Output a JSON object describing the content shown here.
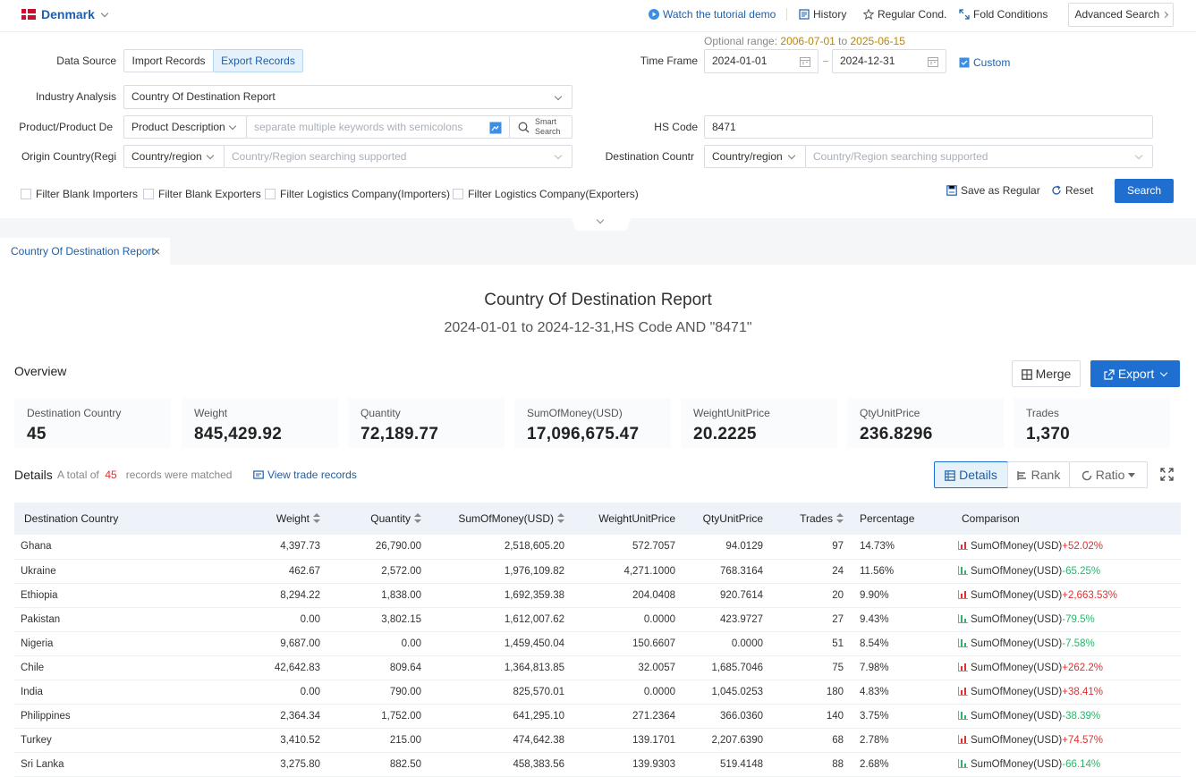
{
  "top": {
    "country": "Denmark",
    "tutorial": "Watch the tutorial demo",
    "history": "History",
    "regular": "Regular Cond.",
    "fold": "Fold Conditions",
    "advanced": "Advanced Search"
  },
  "filters": {
    "optional_range_label": "Optional range",
    "range_start": "2006-07-01",
    "range_to": "to",
    "range_end": "2025-06-15",
    "data_source_label": "Data Source",
    "import_label": "Import Records",
    "export_label": "Export Records",
    "time_frame_label": "Time Frame",
    "date_from": "2024-01-01",
    "date_to": "2024-12-31",
    "custom_label": "Custom",
    "industry_label": "Industry Analysis",
    "industry_value": "Country Of Destination Report",
    "product_label": "Product/Product De",
    "product_type": "Product Description",
    "keywords_placeholder": "separate multiple keywords with semicolons",
    "smart_search_1": "Smart",
    "smart_search_2": "Search",
    "hs_label": "HS Code",
    "hs_value": "8471",
    "origin_label": "Origin Country(Regi",
    "origin_type": "Country/region",
    "origin_placeholder": "Country/Region searching supported",
    "dest_label": "Destination Countr",
    "dest_type": "Country/region",
    "dest_placeholder": "Country/Region searching supported",
    "cb1": "Filter Blank Importers",
    "cb2": "Filter Blank Exporters",
    "cb3": "Filter Logistics Company(Importers)",
    "cb4": "Filter Logistics Company(Exporters)",
    "save_regular": "Save as Regular",
    "reset": "Reset",
    "search": "Search"
  },
  "tab": {
    "label": "Country Of Destination Report"
  },
  "report": {
    "title": "Country Of Destination Report",
    "subtitle": "2024-01-01 to 2024-12-31,HS Code AND \"8471\""
  },
  "overview": {
    "title": "Overview",
    "merge": "Merge",
    "export": "Export",
    "kpis": [
      {
        "label": "Destination Country",
        "value": "45"
      },
      {
        "label": "Weight",
        "value": "845,429.92"
      },
      {
        "label": "Quantity",
        "value": "72,189.77"
      },
      {
        "label": "SumOfMoney(USD)",
        "value": "17,096,675.47"
      },
      {
        "label": "WeightUnitPrice",
        "value": "20.2225"
      },
      {
        "label": "QtyUnitPrice",
        "value": "236.8296"
      },
      {
        "label": "Trades",
        "value": "1,370"
      }
    ]
  },
  "details": {
    "title": "Details",
    "total_prefix": "A total of",
    "total_count": "45",
    "total_suffix": "records were matched",
    "view_trade": "View trade records",
    "btn_details": "Details",
    "btn_rank": "Rank",
    "btn_ratio": "Ratio",
    "columns": [
      "Destination Country",
      "Weight",
      "Quantity",
      "SumOfMoney(USD)",
      "WeightUnitPrice",
      "QtyUnitPrice",
      "Trades",
      "Percentage",
      "Comparison"
    ],
    "comparison_label": "SumOfMoney(USD)",
    "rows": [
      {
        "country": "Ghana",
        "weight": "4,397.73",
        "quantity": "26,790.00",
        "money": "2,518,605.20",
        "wup": "572.7057",
        "qup": "94.0129",
        "trades": "97",
        "pct": "14.73%",
        "cmp": "+52.02%",
        "dir": "up"
      },
      {
        "country": "Ukraine",
        "weight": "462.67",
        "quantity": "2,572.00",
        "money": "1,976,109.82",
        "wup": "4,271.1000",
        "qup": "768.3164",
        "trades": "24",
        "pct": "11.56%",
        "cmp": "-65.25%",
        "dir": "down"
      },
      {
        "country": "Ethiopia",
        "weight": "8,294.22",
        "quantity": "1,838.00",
        "money": "1,692,359.38",
        "wup": "204.0408",
        "qup": "920.7614",
        "trades": "20",
        "pct": "9.90%",
        "cmp": "+2,663.53%",
        "dir": "up"
      },
      {
        "country": "Pakistan",
        "weight": "0.00",
        "quantity": "3,802.15",
        "money": "1,612,007.62",
        "wup": "0.0000",
        "qup": "423.9727",
        "trades": "27",
        "pct": "9.43%",
        "cmp": "-79.5%",
        "dir": "down"
      },
      {
        "country": "Nigeria",
        "weight": "9,687.00",
        "quantity": "0.00",
        "money": "1,459,450.04",
        "wup": "150.6607",
        "qup": "0.0000",
        "trades": "51",
        "pct": "8.54%",
        "cmp": "-7.58%",
        "dir": "down"
      },
      {
        "country": "Chile",
        "weight": "42,642.83",
        "quantity": "809.64",
        "money": "1,364,813.85",
        "wup": "32.0057",
        "qup": "1,685.7046",
        "trades": "75",
        "pct": "7.98%",
        "cmp": "+262.2%",
        "dir": "up"
      },
      {
        "country": "India",
        "weight": "0.00",
        "quantity": "790.00",
        "money": "825,570.01",
        "wup": "0.0000",
        "qup": "1,045.0253",
        "trades": "180",
        "pct": "4.83%",
        "cmp": "+38.41%",
        "dir": "up"
      },
      {
        "country": "Philippines",
        "weight": "2,364.34",
        "quantity": "1,752.00",
        "money": "641,295.10",
        "wup": "271.2364",
        "qup": "366.0360",
        "trades": "140",
        "pct": "3.75%",
        "cmp": "-38.39%",
        "dir": "down"
      },
      {
        "country": "Turkey",
        "weight": "3,410.52",
        "quantity": "215.00",
        "money": "474,642.38",
        "wup": "139.1701",
        "qup": "2,207.6390",
        "trades": "68",
        "pct": "2.78%",
        "cmp": "+74.57%",
        "dir": "up"
      },
      {
        "country": "Sri Lanka",
        "weight": "3,275.80",
        "quantity": "882.50",
        "money": "458,383.56",
        "wup": "139.9303",
        "qup": "519.4148",
        "trades": "88",
        "pct": "2.68%",
        "cmp": "-66.14%",
        "dir": "down"
      }
    ]
  },
  "colors": {
    "accent": "#1f6fd1",
    "brand_blue": "#1f5fa8",
    "up": "#e0302f",
    "down": "#2db36b",
    "range": "#b8860b"
  }
}
